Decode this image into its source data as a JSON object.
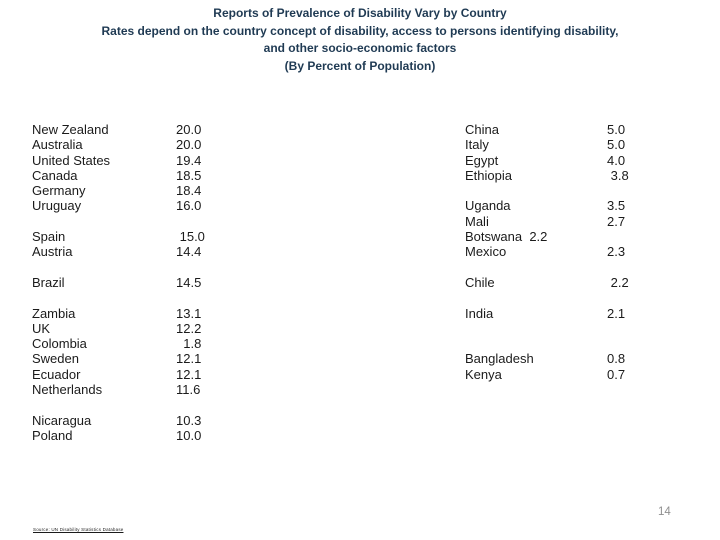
{
  "slide": {
    "title_lines": [
      "Reports of Prevalence of Disability Vary by Country",
      "Rates depend on the country concept of disability, access to persons identifying disability,",
      "and other socio-economic factors",
      "(By Percent of Population)"
    ],
    "page_number": "14",
    "footnote": "Source: UN Disability Statistics Database"
  },
  "colors": {
    "background": "#ffffff",
    "title": "#1f3a53",
    "body": "#1b1b1b",
    "page_number": "#8f8f8f"
  },
  "table": {
    "columns": [
      {
        "rows": [
          {
            "name": "New Zealand",
            "value": "20.0"
          },
          {
            "name": "Australia",
            "value": "20.0"
          },
          {
            "name": "United States",
            "value": "19.4"
          },
          {
            "name": "Canada",
            "value": "18.5"
          },
          {
            "name": "Germany",
            "value": "18.4"
          },
          {
            "name": "Uruguay",
            "value": "16.0"
          },
          {
            "name": "",
            "value": ""
          },
          {
            "name": "Spain",
            "value": " 15.0"
          },
          {
            "name": "Austria",
            "value": "14.4"
          },
          {
            "name": "",
            "value": ""
          },
          {
            "name": "Brazil",
            "value": "14.5"
          },
          {
            "name": "",
            "value": ""
          },
          {
            "name": "Zambia",
            "value": "13.1"
          },
          {
            "name": "UK",
            "value": "12.2"
          },
          {
            "name": "Colombia",
            "value": "  1.8"
          },
          {
            "name": "Sweden",
            "value": "12.1"
          },
          {
            "name": "Ecuador",
            "value": "12.1"
          },
          {
            "name": "Netherlands",
            "value": "11.6"
          },
          {
            "name": "",
            "value": ""
          },
          {
            "name": "Nicaragua",
            "value": "10.3"
          },
          {
            "name": "Poland",
            "value": "10.0"
          }
        ]
      },
      {
        "rows": [
          {
            "name": "China",
            "value": "5.0"
          },
          {
            "name": "Italy",
            "value": "5.0"
          },
          {
            "name": "Egypt",
            "value": "4.0"
          },
          {
            "name": "Ethiopia",
            "value": " 3.8"
          },
          {
            "name": "",
            "value": ""
          },
          {
            "name": "Uganda",
            "value": "3.5"
          },
          {
            "name": "Mali",
            "value": "2.7"
          },
          {
            "name": "Botswana  2.2",
            "value": ""
          },
          {
            "name": "Mexico",
            "value": "2.3"
          },
          {
            "name": "",
            "value": ""
          },
          {
            "name": "Chile",
            "value": " 2.2"
          },
          {
            "name": "",
            "value": ""
          },
          {
            "name": "India",
            "value": "2.1"
          },
          {
            "name": "",
            "value": ""
          },
          {
            "name": "",
            "value": ""
          },
          {
            "name": "Bangladesh",
            "value": "0.8"
          },
          {
            "name": "Kenya",
            "value": "0.7"
          }
        ]
      }
    ]
  },
  "chart_data": {
    "type": "table",
    "title": "Reports of Prevalence of Disability Vary by Country (By Percent of Population)",
    "unit": "percent of population",
    "columns": [
      "Country",
      "Percent"
    ],
    "rows": [
      [
        "New Zealand",
        20.0
      ],
      [
        "Australia",
        20.0
      ],
      [
        "United States",
        19.4
      ],
      [
        "Canada",
        18.5
      ],
      [
        "Germany",
        18.4
      ],
      [
        "Uruguay",
        16.0
      ],
      [
        "Spain",
        15.0
      ],
      [
        "Austria",
        14.4
      ],
      [
        "Brazil",
        14.5
      ],
      [
        "Zambia",
        13.1
      ],
      [
        "UK",
        12.2
      ],
      [
        "Colombia",
        1.8
      ],
      [
        "Sweden",
        12.1
      ],
      [
        "Ecuador",
        12.1
      ],
      [
        "Netherlands",
        11.6
      ],
      [
        "Nicaragua",
        10.3
      ],
      [
        "Poland",
        10.0
      ],
      [
        "China",
        5.0
      ],
      [
        "Italy",
        5.0
      ],
      [
        "Egypt",
        4.0
      ],
      [
        "Ethiopia",
        3.8
      ],
      [
        "Uganda",
        3.5
      ],
      [
        "Mali",
        2.7
      ],
      [
        "Botswana",
        2.2
      ],
      [
        "Mexico",
        2.3
      ],
      [
        "Chile",
        2.2
      ],
      [
        "India",
        2.1
      ],
      [
        "Bangladesh",
        0.8
      ],
      [
        "Kenya",
        0.7
      ]
    ]
  }
}
